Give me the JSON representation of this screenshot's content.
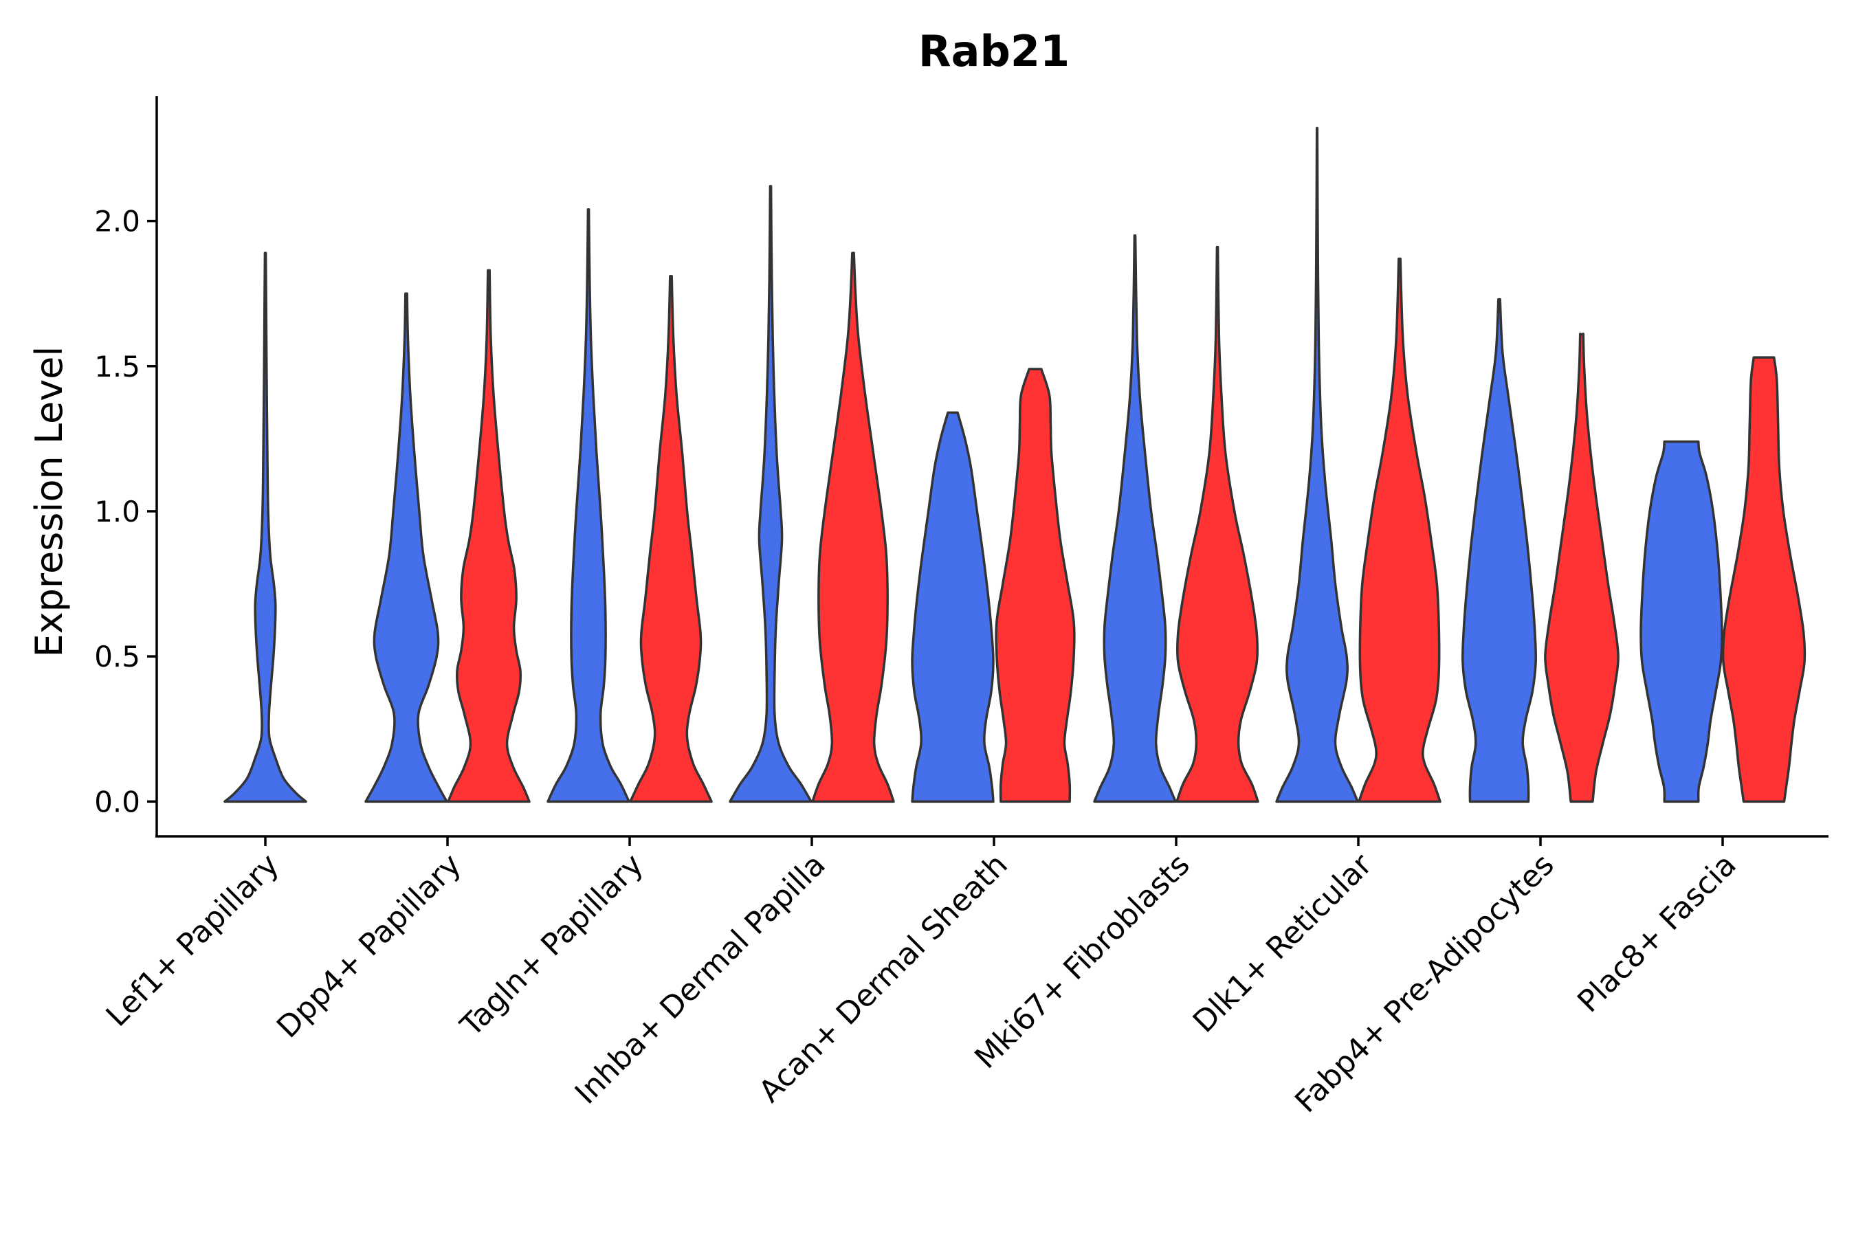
{
  "chart_data": {
    "type": "violin",
    "title": "Rab21",
    "xlabel": "",
    "ylabel": "Expression Level",
    "ylim": [
      -0.12,
      2.43
    ],
    "yticks": [
      0.0,
      0.5,
      1.0,
      1.5,
      2.0
    ],
    "ytick_labels": [
      "0.0",
      "0.5",
      "1.0",
      "1.5",
      "2.0"
    ],
    "grid": false,
    "legend": "none",
    "series_colors": {
      "group1": "#4670EB",
      "group2": "#FF3333"
    },
    "categories": [
      "Lef1+ Papillary",
      "Dpp4+ Papillary",
      "Tagln+ Papillary",
      "Inhba+ Dermal Papilla",
      "Acan+ Dermal Sheath",
      "Mki67+ Fibroblasts",
      "Dlk1+ Reticular",
      "Fabp4+ Pre-Adipocytes",
      "Plac8+ Fascia"
    ],
    "violins": [
      {
        "category": "Lef1+ Papillary",
        "group": "group1",
        "min": 0.0,
        "max": 1.89,
        "profile": [
          [
            0.0,
            1.0
          ],
          [
            0.03,
            0.75
          ],
          [
            0.08,
            0.45
          ],
          [
            0.15,
            0.25
          ],
          [
            0.22,
            0.1
          ],
          [
            0.3,
            0.09
          ],
          [
            0.4,
            0.14
          ],
          [
            0.5,
            0.2
          ],
          [
            0.6,
            0.24
          ],
          [
            0.68,
            0.25
          ],
          [
            0.75,
            0.21
          ],
          [
            0.85,
            0.12
          ],
          [
            1.0,
            0.07
          ],
          [
            1.2,
            0.05
          ],
          [
            1.5,
            0.03
          ],
          [
            1.7,
            0.02
          ],
          [
            1.89,
            0.01
          ]
        ]
      },
      {
        "category": "Dpp4+ Papillary",
        "group": "group1",
        "min": 0.0,
        "max": 1.75,
        "profile": [
          [
            0.0,
            1.0
          ],
          [
            0.05,
            0.8
          ],
          [
            0.12,
            0.55
          ],
          [
            0.2,
            0.35
          ],
          [
            0.3,
            0.3
          ],
          [
            0.4,
            0.55
          ],
          [
            0.5,
            0.75
          ],
          [
            0.58,
            0.78
          ],
          [
            0.7,
            0.62
          ],
          [
            0.85,
            0.42
          ],
          [
            1.0,
            0.32
          ],
          [
            1.2,
            0.2
          ],
          [
            1.4,
            0.1
          ],
          [
            1.6,
            0.04
          ],
          [
            1.75,
            0.02
          ]
        ]
      },
      {
        "category": "Dpp4+ Papillary",
        "group": "group2",
        "min": 0.0,
        "max": 1.83,
        "profile": [
          [
            0.0,
            1.0
          ],
          [
            0.05,
            0.85
          ],
          [
            0.12,
            0.6
          ],
          [
            0.2,
            0.45
          ],
          [
            0.3,
            0.6
          ],
          [
            0.38,
            0.75
          ],
          [
            0.45,
            0.78
          ],
          [
            0.52,
            0.68
          ],
          [
            0.6,
            0.62
          ],
          [
            0.7,
            0.68
          ],
          [
            0.8,
            0.63
          ],
          [
            0.9,
            0.48
          ],
          [
            1.0,
            0.38
          ],
          [
            1.2,
            0.24
          ],
          [
            1.4,
            0.12
          ],
          [
            1.6,
            0.05
          ],
          [
            1.83,
            0.02
          ]
        ]
      },
      {
        "category": "Tagln+ Papillary",
        "group": "group1",
        "min": 0.0,
        "max": 2.04,
        "profile": [
          [
            0.0,
            1.0
          ],
          [
            0.06,
            0.8
          ],
          [
            0.12,
            0.55
          ],
          [
            0.2,
            0.35
          ],
          [
            0.3,
            0.3
          ],
          [
            0.4,
            0.38
          ],
          [
            0.5,
            0.42
          ],
          [
            0.65,
            0.42
          ],
          [
            0.8,
            0.38
          ],
          [
            1.0,
            0.3
          ],
          [
            1.2,
            0.2
          ],
          [
            1.4,
            0.12
          ],
          [
            1.6,
            0.06
          ],
          [
            1.8,
            0.03
          ],
          [
            2.04,
            0.01
          ]
        ]
      },
      {
        "category": "Tagln+ Papillary",
        "group": "group2",
        "min": 0.0,
        "max": 1.81,
        "profile": [
          [
            0.0,
            1.0
          ],
          [
            0.06,
            0.8
          ],
          [
            0.13,
            0.55
          ],
          [
            0.22,
            0.4
          ],
          [
            0.3,
            0.45
          ],
          [
            0.4,
            0.62
          ],
          [
            0.5,
            0.72
          ],
          [
            0.58,
            0.73
          ],
          [
            0.7,
            0.63
          ],
          [
            0.85,
            0.52
          ],
          [
            1.0,
            0.4
          ],
          [
            1.2,
            0.28
          ],
          [
            1.4,
            0.14
          ],
          [
            1.6,
            0.06
          ],
          [
            1.81,
            0.02
          ]
        ]
      },
      {
        "category": "Inhba+ Dermal Papilla",
        "group": "group1",
        "min": 0.0,
        "max": 2.12,
        "profile": [
          [
            0.0,
            1.0
          ],
          [
            0.06,
            0.75
          ],
          [
            0.12,
            0.45
          ],
          [
            0.2,
            0.2
          ],
          [
            0.3,
            0.1
          ],
          [
            0.45,
            0.1
          ],
          [
            0.6,
            0.13
          ],
          [
            0.75,
            0.2
          ],
          [
            0.9,
            0.28
          ],
          [
            1.0,
            0.25
          ],
          [
            1.2,
            0.15
          ],
          [
            1.5,
            0.07
          ],
          [
            1.8,
            0.03
          ],
          [
            2.12,
            0.01
          ]
        ]
      },
      {
        "category": "Inhba+ Dermal Papilla",
        "group": "group2",
        "min": 0.0,
        "max": 1.89,
        "profile": [
          [
            0.0,
            1.0
          ],
          [
            0.06,
            0.85
          ],
          [
            0.13,
            0.62
          ],
          [
            0.2,
            0.52
          ],
          [
            0.3,
            0.58
          ],
          [
            0.4,
            0.7
          ],
          [
            0.55,
            0.82
          ],
          [
            0.7,
            0.85
          ],
          [
            0.85,
            0.82
          ],
          [
            1.0,
            0.7
          ],
          [
            1.2,
            0.5
          ],
          [
            1.4,
            0.3
          ],
          [
            1.6,
            0.13
          ],
          [
            1.75,
            0.06
          ],
          [
            1.89,
            0.02
          ]
        ]
      },
      {
        "category": "Acan+ Dermal Sheath",
        "group": "group1",
        "min": 0.0,
        "max": 1.34,
        "profile": [
          [
            0.0,
            1.0
          ],
          [
            0.05,
            0.97
          ],
          [
            0.12,
            0.9
          ],
          [
            0.2,
            0.78
          ],
          [
            0.28,
            0.82
          ],
          [
            0.38,
            0.95
          ],
          [
            0.48,
            1.0
          ],
          [
            0.58,
            0.96
          ],
          [
            0.7,
            0.88
          ],
          [
            0.85,
            0.75
          ],
          [
            1.0,
            0.6
          ],
          [
            1.15,
            0.45
          ],
          [
            1.25,
            0.3
          ],
          [
            1.34,
            0.12
          ]
        ]
      },
      {
        "category": "Acan+ Dermal Sheath",
        "group": "group2",
        "min": 0.0,
        "max": 1.49,
        "profile": [
          [
            0.0,
            0.85
          ],
          [
            0.06,
            0.85
          ],
          [
            0.13,
            0.8
          ],
          [
            0.2,
            0.72
          ],
          [
            0.28,
            0.78
          ],
          [
            0.38,
            0.88
          ],
          [
            0.5,
            0.95
          ],
          [
            0.62,
            0.95
          ],
          [
            0.75,
            0.8
          ],
          [
            0.9,
            0.62
          ],
          [
            1.05,
            0.5
          ],
          [
            1.2,
            0.4
          ],
          [
            1.3,
            0.38
          ],
          [
            1.4,
            0.35
          ],
          [
            1.49,
            0.15
          ]
        ]
      },
      {
        "category": "Mki67+ Fibroblasts",
        "group": "group1",
        "min": 0.0,
        "max": 1.95,
        "profile": [
          [
            0.0,
            1.0
          ],
          [
            0.05,
            0.85
          ],
          [
            0.12,
            0.62
          ],
          [
            0.2,
            0.52
          ],
          [
            0.3,
            0.58
          ],
          [
            0.4,
            0.68
          ],
          [
            0.5,
            0.75
          ],
          [
            0.6,
            0.75
          ],
          [
            0.7,
            0.68
          ],
          [
            0.85,
            0.55
          ],
          [
            1.0,
            0.4
          ],
          [
            1.2,
            0.25
          ],
          [
            1.4,
            0.12
          ],
          [
            1.6,
            0.05
          ],
          [
            1.95,
            0.01
          ]
        ]
      },
      {
        "category": "Mki67+ Fibroblasts",
        "group": "group2",
        "min": 0.0,
        "max": 1.91,
        "profile": [
          [
            0.0,
            1.0
          ],
          [
            0.06,
            0.85
          ],
          [
            0.13,
            0.6
          ],
          [
            0.2,
            0.52
          ],
          [
            0.28,
            0.58
          ],
          [
            0.38,
            0.8
          ],
          [
            0.48,
            0.97
          ],
          [
            0.58,
            0.97
          ],
          [
            0.7,
            0.85
          ],
          [
            0.85,
            0.65
          ],
          [
            1.0,
            0.42
          ],
          [
            1.2,
            0.2
          ],
          [
            1.4,
            0.1
          ],
          [
            1.6,
            0.04
          ],
          [
            1.91,
            0.01
          ]
        ]
      },
      {
        "category": "Dlk1+ Reticular",
        "group": "group1",
        "min": 0.0,
        "max": 2.32,
        "profile": [
          [
            0.0,
            1.0
          ],
          [
            0.05,
            0.85
          ],
          [
            0.12,
            0.6
          ],
          [
            0.2,
            0.45
          ],
          [
            0.3,
            0.55
          ],
          [
            0.42,
            0.73
          ],
          [
            0.5,
            0.73
          ],
          [
            0.6,
            0.6
          ],
          [
            0.75,
            0.45
          ],
          [
            0.9,
            0.35
          ],
          [
            1.1,
            0.2
          ],
          [
            1.3,
            0.1
          ],
          [
            1.6,
            0.04
          ],
          [
            2.0,
            0.015
          ],
          [
            2.32,
            0.005
          ]
        ]
      },
      {
        "category": "Dlk1+ Reticular",
        "group": "group2",
        "min": 0.0,
        "max": 1.87,
        "profile": [
          [
            0.0,
            1.0
          ],
          [
            0.06,
            0.85
          ],
          [
            0.13,
            0.62
          ],
          [
            0.18,
            0.58
          ],
          [
            0.25,
            0.7
          ],
          [
            0.35,
            0.9
          ],
          [
            0.45,
            0.97
          ],
          [
            0.6,
            0.97
          ],
          [
            0.75,
            0.92
          ],
          [
            0.9,
            0.78
          ],
          [
            1.05,
            0.62
          ],
          [
            1.2,
            0.42
          ],
          [
            1.4,
            0.2
          ],
          [
            1.6,
            0.08
          ],
          [
            1.87,
            0.02
          ]
        ]
      },
      {
        "category": "Fabp4+ Pre-Adipocytes",
        "group": "group1",
        "min": 0.0,
        "max": 1.73,
        "profile": [
          [
            0.0,
            0.72
          ],
          [
            0.05,
            0.72
          ],
          [
            0.12,
            0.68
          ],
          [
            0.2,
            0.58
          ],
          [
            0.28,
            0.65
          ],
          [
            0.38,
            0.82
          ],
          [
            0.48,
            0.9
          ],
          [
            0.58,
            0.88
          ],
          [
            0.7,
            0.82
          ],
          [
            0.85,
            0.72
          ],
          [
            1.0,
            0.6
          ],
          [
            1.2,
            0.42
          ],
          [
            1.4,
            0.22
          ],
          [
            1.55,
            0.08
          ],
          [
            1.73,
            0.02
          ]
        ]
      },
      {
        "category": "Fabp4+ Pre-Adipocytes",
        "group": "group2",
        "min": 0.0,
        "max": 1.61,
        "profile": [
          [
            0.0,
            0.27
          ],
          [
            0.1,
            0.35
          ],
          [
            0.2,
            0.52
          ],
          [
            0.3,
            0.7
          ],
          [
            0.4,
            0.82
          ],
          [
            0.5,
            0.9
          ],
          [
            0.62,
            0.8
          ],
          [
            0.75,
            0.65
          ],
          [
            0.9,
            0.5
          ],
          [
            1.05,
            0.35
          ],
          [
            1.2,
            0.22
          ],
          [
            1.35,
            0.12
          ],
          [
            1.5,
            0.06
          ],
          [
            1.6,
            0.04
          ],
          [
            1.61,
            0.04
          ]
        ]
      },
      {
        "category": "Plac8+ Fascia",
        "group": "group1",
        "min": 0.0,
        "max": 1.24,
        "profile": [
          [
            0.0,
            0.42
          ],
          [
            0.05,
            0.43
          ],
          [
            0.12,
            0.55
          ],
          [
            0.2,
            0.65
          ],
          [
            0.28,
            0.72
          ],
          [
            0.38,
            0.85
          ],
          [
            0.48,
            0.97
          ],
          [
            0.58,
            1.0
          ],
          [
            0.7,
            0.97
          ],
          [
            0.85,
            0.9
          ],
          [
            1.0,
            0.78
          ],
          [
            1.12,
            0.62
          ],
          [
            1.2,
            0.45
          ],
          [
            1.24,
            0.42
          ]
        ]
      },
      {
        "category": "Plac8+ Fascia",
        "group": "group2",
        "min": 0.0,
        "max": 1.53,
        "profile": [
          [
            0.0,
            0.5
          ],
          [
            0.05,
            0.55
          ],
          [
            0.12,
            0.62
          ],
          [
            0.2,
            0.68
          ],
          [
            0.28,
            0.75
          ],
          [
            0.38,
            0.88
          ],
          [
            0.48,
            1.0
          ],
          [
            0.58,
            0.98
          ],
          [
            0.7,
            0.85
          ],
          [
            0.85,
            0.65
          ],
          [
            1.0,
            0.48
          ],
          [
            1.15,
            0.38
          ],
          [
            1.3,
            0.35
          ],
          [
            1.45,
            0.32
          ],
          [
            1.53,
            0.25
          ]
        ]
      }
    ]
  }
}
